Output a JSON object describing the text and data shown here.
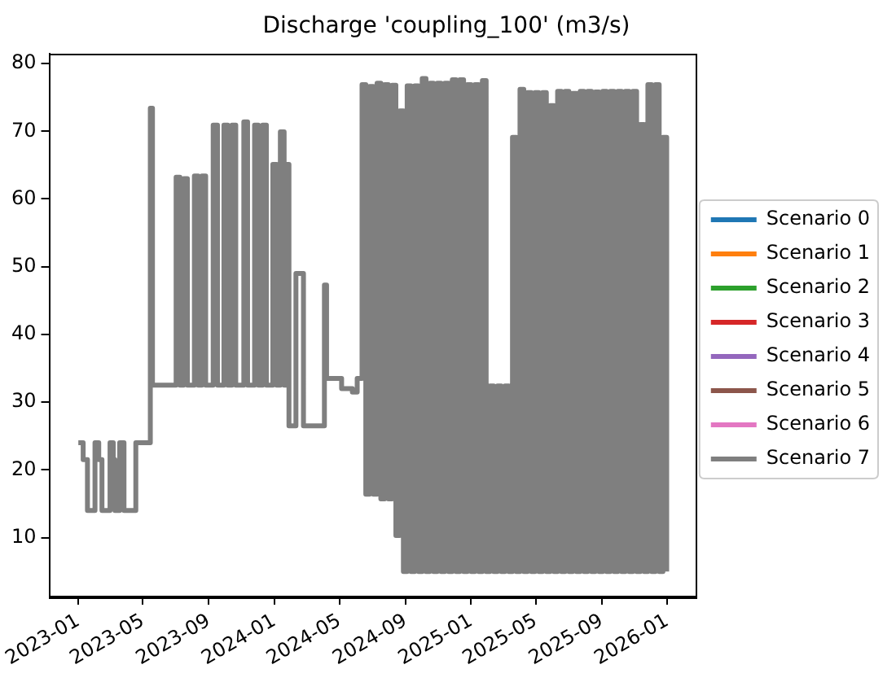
{
  "chart_data": {
    "type": "step",
    "title": "Discharge 'coupling_100' (m3/s)",
    "x": [
      "2023-01-01",
      "2023-01-10",
      "2023-01-18",
      "2023-02-01",
      "2023-02-08",
      "2023-02-14",
      "2023-03-01",
      "2023-03-07",
      "2023-03-10",
      "2023-03-19",
      "2023-03-27",
      "2023-04-18",
      "2023-05-15",
      "2023-05-19",
      "2023-07-02",
      "2023-07-09",
      "2023-07-16",
      "2023-07-23",
      "2023-08-05",
      "2023-08-12",
      "2023-08-19",
      "2023-08-26",
      "2023-09-09",
      "2023-09-17",
      "2023-09-29",
      "2023-10-06",
      "2023-10-14",
      "2023-10-21",
      "2023-11-05",
      "2023-11-12",
      "2023-11-25",
      "2023-12-02",
      "2023-12-10",
      "2023-12-17",
      "2023-12-29",
      "2024-01-05",
      "2024-01-12",
      "2024-01-19",
      "2024-01-22",
      "2024-01-28",
      "2024-02-10",
      "2024-02-24",
      "2024-04-03",
      "2024-04-07",
      "2024-05-05",
      "2024-05-25",
      "2024-06-03",
      "2024-06-12",
      "2024-06-19",
      "2024-06-26",
      "2024-07-03",
      "2024-07-10",
      "2024-07-17",
      "2024-07-24",
      "2024-07-31",
      "2024-08-07",
      "2024-08-14",
      "2024-08-21",
      "2024-08-28",
      "2024-09-04",
      "2024-09-11",
      "2024-09-18",
      "2024-09-25",
      "2024-10-02",
      "2024-10-09",
      "2024-10-16",
      "2024-10-23",
      "2024-10-30",
      "2024-11-06",
      "2024-11-13",
      "2024-11-20",
      "2024-11-27",
      "2024-12-04",
      "2024-12-11",
      "2024-12-18",
      "2024-12-25",
      "2025-01-01",
      "2025-01-08",
      "2025-01-15",
      "2025-01-22",
      "2025-01-29",
      "2025-02-05",
      "2025-02-12",
      "2025-02-19",
      "2025-02-26",
      "2025-03-05",
      "2025-03-12",
      "2025-03-19",
      "2025-03-26",
      "2025-04-02",
      "2025-04-09",
      "2025-04-16",
      "2025-04-23",
      "2025-04-30",
      "2025-05-07",
      "2025-05-14",
      "2025-05-21",
      "2025-05-28",
      "2025-06-04",
      "2025-06-11",
      "2025-06-18",
      "2025-06-25",
      "2025-07-02",
      "2025-07-09",
      "2025-07-16",
      "2025-07-23",
      "2025-07-30",
      "2025-08-06",
      "2025-08-13",
      "2025-08-20",
      "2025-08-27",
      "2025-09-03",
      "2025-09-10",
      "2025-09-17",
      "2025-09-24",
      "2025-10-01",
      "2025-10-08",
      "2025-10-15",
      "2025-10-22",
      "2025-10-29",
      "2025-11-05",
      "2025-11-12",
      "2025-11-19",
      "2025-11-26",
      "2025-12-03",
      "2025-12-10",
      "2025-12-17",
      "2025-12-24",
      "2025-12-31"
    ],
    "series": [
      {
        "name": "Scenario 0",
        "color": "#1f77b4",
        "values": [
          null,
          null,
          null,
          null,
          null,
          null,
          null,
          null,
          null,
          null,
          null,
          null,
          null,
          null,
          null,
          null,
          null,
          null,
          null,
          null,
          null,
          null,
          null,
          null,
          null,
          null,
          null,
          null,
          null,
          null,
          null,
          null,
          null,
          null,
          null,
          null,
          null,
          null,
          null,
          null,
          null,
          null,
          null,
          null,
          null,
          null,
          null,
          null,
          null,
          null,
          null,
          null,
          null,
          null,
          null,
          null,
          null,
          null,
          null,
          null,
          null,
          null,
          null,
          null,
          null,
          null,
          null,
          null,
          null,
          null,
          null,
          null,
          null,
          null,
          null,
          null,
          null,
          null,
          null,
          null,
          null,
          null,
          null,
          null,
          null,
          null,
          null,
          null,
          null,
          null,
          null,
          null,
          null,
          null,
          null,
          null,
          null,
          null,
          null,
          null,
          null,
          null,
          null,
          null,
          null,
          null,
          null,
          null,
          null,
          null,
          null,
          null,
          null,
          null,
          null,
          null,
          null,
          null,
          null,
          null,
          null,
          null,
          null,
          null,
          null,
          null,
          null,
          null,
          null
        ]
      },
      {
        "name": "Scenario 1",
        "color": "#ff7f0e",
        "values": [
          null,
          null,
          null,
          null,
          null,
          null,
          null,
          null,
          null,
          null,
          null,
          null,
          null,
          null,
          null,
          null,
          null,
          null,
          null,
          null,
          null,
          null,
          null,
          null,
          null,
          null,
          null,
          null,
          null,
          null,
          null,
          null,
          null,
          null,
          null,
          null,
          null,
          null,
          null,
          null,
          null,
          null,
          null,
          null,
          null,
          null,
          null,
          null,
          null,
          null,
          null,
          null,
          null,
          null,
          null,
          null,
          null,
          null,
          null,
          null,
          null,
          null,
          null,
          null,
          null,
          null,
          null,
          null,
          null,
          null,
          null,
          null,
          null,
          null,
          null,
          null,
          null,
          null,
          null,
          null,
          null,
          null,
          null,
          null,
          null,
          null,
          null,
          null,
          null,
          null,
          null,
          null,
          null,
          null,
          null,
          null,
          null,
          null,
          null,
          null,
          null,
          null,
          null,
          null,
          null,
          null,
          null,
          null,
          null,
          null,
          null,
          null,
          null,
          null,
          null,
          null,
          null,
          null,
          null,
          null,
          null,
          null,
          null,
          null,
          null,
          null,
          null,
          null,
          null
        ]
      },
      {
        "name": "Scenario 2",
        "color": "#2ca02c",
        "values": [
          null,
          null,
          null,
          null,
          null,
          null,
          null,
          null,
          null,
          null,
          null,
          null,
          null,
          null,
          null,
          null,
          null,
          null,
          null,
          null,
          null,
          null,
          null,
          null,
          null,
          null,
          null,
          null,
          null,
          null,
          null,
          null,
          null,
          null,
          null,
          null,
          null,
          null,
          null,
          null,
          null,
          null,
          null,
          null,
          null,
          null,
          null,
          null,
          null,
          null,
          null,
          null,
          null,
          null,
          null,
          null,
          null,
          null,
          null,
          null,
          null,
          null,
          null,
          null,
          null,
          null,
          null,
          null,
          null,
          null,
          null,
          null,
          null,
          null,
          null,
          null,
          null,
          null,
          null,
          null,
          null,
          null,
          null,
          null,
          null,
          null,
          null,
          null,
          null,
          null,
          null,
          null,
          null,
          null,
          null,
          null,
          null,
          null,
          null,
          null,
          null,
          null,
          null,
          null,
          null,
          null,
          null,
          null,
          null,
          null,
          null,
          null,
          null,
          null,
          null,
          null,
          null,
          null,
          null,
          null,
          null,
          null,
          null,
          null,
          null,
          null,
          null,
          null,
          null
        ]
      },
      {
        "name": "Scenario 3",
        "color": "#d62728",
        "values": [
          null,
          null,
          null,
          null,
          null,
          null,
          null,
          null,
          null,
          null,
          null,
          null,
          null,
          null,
          null,
          null,
          null,
          null,
          null,
          null,
          null,
          null,
          null,
          null,
          null,
          null,
          null,
          null,
          null,
          null,
          null,
          null,
          null,
          null,
          null,
          null,
          null,
          null,
          null,
          null,
          null,
          null,
          null,
          null,
          null,
          null,
          null,
          null,
          null,
          null,
          null,
          null,
          null,
          null,
          null,
          null,
          null,
          null,
          null,
          null,
          null,
          null,
          null,
          null,
          null,
          null,
          null,
          null,
          null,
          null,
          null,
          null,
          null,
          null,
          null,
          null,
          null,
          null,
          null,
          null,
          null,
          null,
          null,
          null,
          null,
          null,
          null,
          null,
          null,
          null,
          null,
          null,
          null,
          null,
          null,
          null,
          null,
          null,
          null,
          null,
          null,
          null,
          null,
          null,
          null,
          null,
          null,
          null,
          null,
          null,
          null,
          null,
          null,
          null,
          null,
          null,
          null,
          null,
          null,
          null,
          null,
          null,
          null,
          null,
          null,
          null,
          null,
          null,
          null
        ]
      },
      {
        "name": "Scenario 4",
        "color": "#9467bd",
        "values": [
          null,
          null,
          null,
          null,
          null,
          null,
          null,
          null,
          null,
          null,
          null,
          null,
          null,
          null,
          null,
          null,
          null,
          null,
          null,
          null,
          null,
          null,
          null,
          null,
          null,
          null,
          null,
          null,
          null,
          null,
          null,
          null,
          null,
          null,
          null,
          null,
          null,
          null,
          null,
          null,
          null,
          null,
          null,
          null,
          null,
          null,
          null,
          null,
          null,
          null,
          null,
          null,
          null,
          null,
          null,
          null,
          null,
          null,
          null,
          null,
          null,
          null,
          null,
          null,
          null,
          null,
          null,
          null,
          null,
          null,
          null,
          null,
          null,
          null,
          null,
          null,
          null,
          null,
          null,
          null,
          null,
          null,
          null,
          null,
          null,
          null,
          null,
          null,
          null,
          null,
          null,
          null,
          null,
          null,
          null,
          null,
          null,
          null,
          null,
          null,
          null,
          null,
          null,
          null,
          null,
          null,
          null,
          null,
          null,
          null,
          null,
          null,
          null,
          null,
          null,
          null,
          null,
          null,
          null,
          null,
          null,
          null,
          null,
          null,
          null,
          null,
          null,
          null,
          null
        ]
      },
      {
        "name": "Scenario 5",
        "color": "#8c564b",
        "values": [
          null,
          null,
          null,
          null,
          null,
          null,
          null,
          null,
          null,
          null,
          null,
          null,
          null,
          null,
          null,
          null,
          null,
          null,
          null,
          null,
          null,
          null,
          null,
          null,
          null,
          null,
          null,
          null,
          null,
          null,
          null,
          null,
          null,
          null,
          null,
          null,
          null,
          null,
          null,
          null,
          null,
          null,
          null,
          null,
          null,
          null,
          null,
          null,
          null,
          null,
          null,
          null,
          null,
          null,
          null,
          null,
          null,
          null,
          null,
          null,
          null,
          null,
          null,
          null,
          null,
          null,
          null,
          null,
          null,
          null,
          null,
          null,
          null,
          null,
          null,
          null,
          null,
          null,
          null,
          null,
          null,
          null,
          null,
          null,
          null,
          null,
          null,
          null,
          null,
          null,
          null,
          null,
          null,
          null,
          null,
          null,
          null,
          null,
          null,
          null,
          null,
          null,
          null,
          null,
          null,
          null,
          null,
          null,
          null,
          null,
          null,
          null,
          null,
          null,
          null,
          null,
          null,
          null,
          null,
          null,
          null,
          null,
          null,
          null,
          null,
          null,
          null,
          null,
          null
        ]
      },
      {
        "name": "Scenario 6",
        "color": "#e377c2",
        "values": [
          null,
          null,
          null,
          null,
          null,
          null,
          null,
          null,
          null,
          null,
          null,
          null,
          null,
          null,
          null,
          null,
          null,
          null,
          null,
          null,
          null,
          null,
          null,
          null,
          null,
          null,
          null,
          null,
          null,
          null,
          null,
          null,
          null,
          null,
          null,
          null,
          null,
          null,
          null,
          null,
          null,
          null,
          null,
          null,
          null,
          null,
          null,
          null,
          null,
          null,
          null,
          null,
          null,
          null,
          null,
          null,
          null,
          null,
          null,
          null,
          null,
          null,
          null,
          null,
          null,
          null,
          null,
          null,
          null,
          null,
          null,
          null,
          null,
          null,
          null,
          null,
          null,
          null,
          null,
          null,
          null,
          null,
          null,
          null,
          null,
          null,
          null,
          null,
          null,
          null,
          null,
          null,
          null,
          null,
          null,
          null,
          null,
          null,
          null,
          null,
          null,
          null,
          null,
          null,
          null,
          null,
          null,
          null,
          null,
          null,
          null,
          null,
          null,
          null,
          null,
          null,
          null,
          null,
          null,
          null,
          null,
          null,
          null,
          null,
          null,
          null,
          null,
          null,
          null
        ]
      },
      {
        "name": "Scenario 7",
        "color": "#7f7f7f",
        "values": [
          24,
          21.5,
          14,
          24,
          21.5,
          14,
          24,
          21.5,
          14,
          24,
          14,
          24,
          73.4,
          32.5,
          63.2,
          32.5,
          63.0,
          32.5,
          63.4,
          32.5,
          63.4,
          32.5,
          70.9,
          32.5,
          70.9,
          32.5,
          70.9,
          32.5,
          71.4,
          32.5,
          70.9,
          32.5,
          70.9,
          32.5,
          65.1,
          32.5,
          69.9,
          32.5,
          65.1,
          26.5,
          49.0,
          26.5,
          47.3,
          33.5,
          32,
          31.5,
          33.5,
          76.9,
          16.4,
          76.6,
          16.4,
          77.1,
          15.7,
          76.9,
          15.7,
          76.8,
          10.3,
          73.0,
          5,
          76.7,
          5,
          76.7,
          5,
          77.8,
          5,
          77.1,
          5,
          77.1,
          5,
          77.1,
          5,
          77.6,
          5,
          77.6,
          5,
          76.9,
          5,
          76.9,
          5,
          77.5,
          5,
          32.4,
          5,
          32.4,
          5,
          32.4,
          5,
          69.1,
          5,
          76.2,
          5,
          75.7,
          5,
          75.7,
          5,
          75.7,
          5,
          73.8,
          5,
          75.9,
          5,
          75.9,
          5,
          75.6,
          5,
          75.9,
          5,
          75.9,
          5,
          75.8,
          5,
          75.9,
          5,
          75.9,
          5,
          75.9,
          5,
          75.9,
          5,
          75.9,
          5,
          71.0,
          5,
          76.9,
          5,
          76.9,
          5,
          69.1,
          5
        ]
      }
    ],
    "xlim": [
      "2022-11-08",
      "2026-02-24"
    ],
    "xticks": [
      "2023-01",
      "2023-05",
      "2023-09",
      "2024-01",
      "2024-05",
      "2024-09",
      "2025-01",
      "2025-05",
      "2025-09",
      "2026-01"
    ],
    "ylim": [
      1.3,
      81.5
    ],
    "yticks": [
      10,
      20,
      30,
      40,
      50,
      60,
      70,
      80
    ],
    "legend": "right"
  }
}
